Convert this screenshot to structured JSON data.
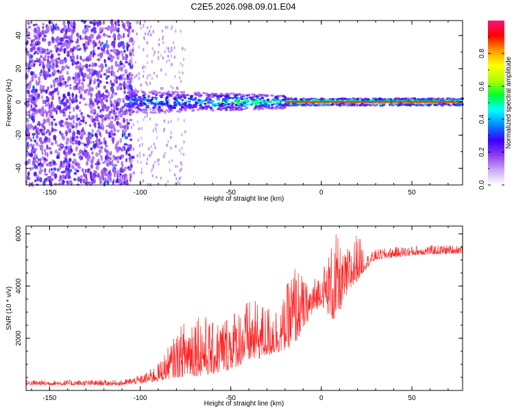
{
  "title": "C2E5.2026.098.09.01.E04",
  "chart_data": [
    {
      "type": "heatmap",
      "name": "spectrogram",
      "xlabel": "Height of straight line (km)",
      "ylabel": "Frequency (Hz)",
      "xlim": [
        -163,
        78
      ],
      "ylim": [
        -50,
        49
      ],
      "xticks": [
        -150,
        -100,
        -50,
        0,
        50
      ],
      "yticks": [
        -40,
        -20,
        0,
        20,
        40
      ],
      "colorbar": {
        "label": "Normalized spectral amplitude",
        "range": [
          0.0,
          1.0
        ],
        "ticks": [
          0.0,
          0.2,
          0.4,
          0.6,
          0.8
        ],
        "colors": [
          "#ffffff",
          "#c9a8f2",
          "#8a3cf0",
          "#3a00ff",
          "#0088ff",
          "#00ffff",
          "#00ff30",
          "#b0ff00",
          "#ffff00",
          "#ff9900",
          "#ff0000",
          "#ff1080"
        ]
      },
      "description_regions": [
        {
          "x_range": [
            -163,
            -105
          ],
          "freq_range": [
            -50,
            49
          ],
          "amplitude": "low, noisy scattered speckle"
        },
        {
          "x_range": [
            -105,
            -20
          ],
          "freq_range": [
            -6,
            6
          ],
          "amplitude": "medium band, widening toward left"
        },
        {
          "x_range": [
            -20,
            78
          ],
          "freq_range": [
            -2,
            2
          ],
          "amplitude": "high, narrow line near 0 Hz"
        }
      ]
    },
    {
      "type": "line",
      "name": "snr",
      "xlabel": "Height of straight line (km)",
      "ylabel": "SNR (10 * v/v)",
      "xlim": [
        -163,
        78
      ],
      "ylim": [
        0,
        6300
      ],
      "xticks": [
        -150,
        -100,
        -50,
        0,
        50
      ],
      "yticks": [
        2000,
        4000,
        6000
      ],
      "color": "#ff2020",
      "envelope": [
        {
          "x": -163,
          "base": 200,
          "spread": 200
        },
        {
          "x": -110,
          "base": 200,
          "spread": 200
        },
        {
          "x": -98,
          "base": 280,
          "spread": 350
        },
        {
          "x": -90,
          "base": 350,
          "spread": 700
        },
        {
          "x": -80,
          "base": 500,
          "spread": 1700
        },
        {
          "x": -70,
          "base": 550,
          "spread": 2800
        },
        {
          "x": -60,
          "base": 600,
          "spread": 2000
        },
        {
          "x": -50,
          "base": 800,
          "spread": 2300
        },
        {
          "x": -40,
          "base": 1100,
          "spread": 2400
        },
        {
          "x": -30,
          "base": 1300,
          "spread": 2000
        },
        {
          "x": -22,
          "base": 1500,
          "spread": 1800
        },
        {
          "x": -15,
          "base": 1700,
          "spread": 3300
        },
        {
          "x": -8,
          "base": 2600,
          "spread": 1500
        },
        {
          "x": 0,
          "base": 3300,
          "spread": 1300
        },
        {
          "x": 8,
          "base": 2500,
          "spread": 3600
        },
        {
          "x": 12,
          "base": 3400,
          "spread": 1800
        },
        {
          "x": 20,
          "base": 4200,
          "spread": 1900
        },
        {
          "x": 25,
          "base": 4700,
          "spread": 500
        },
        {
          "x": 30,
          "base": 5000,
          "spread": 400
        },
        {
          "x": 40,
          "base": 5100,
          "spread": 400
        },
        {
          "x": 55,
          "base": 5200,
          "spread": 350
        },
        {
          "x": 78,
          "base": 5250,
          "spread": 350
        }
      ]
    }
  ]
}
